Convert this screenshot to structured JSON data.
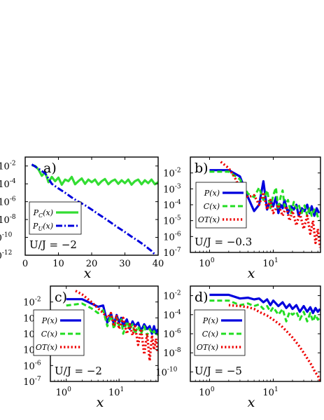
{
  "colors": {
    "P": "#0000dd",
    "C": "#22dd22",
    "OT": "#ee0000",
    "PC": "#33dd33",
    "PU": "#0000dd"
  },
  "chart_data": [
    {
      "id": "a",
      "type": "line",
      "panel_label": "a)",
      "annotation": "U/J = −2",
      "xlabel": "x",
      "xscale": "linear",
      "yscale": "log",
      "xlim": [
        0,
        40
      ],
      "ylim": [
        1e-12,
        0.1
      ],
      "xticks": [
        0,
        10,
        20,
        30,
        40
      ],
      "xtick_labels": [
        "0",
        "10",
        "20",
        "30",
        "40"
      ],
      "yticks": [
        0.01,
        0.0001,
        1e-06,
        1e-08,
        1e-10,
        1e-12
      ],
      "ytick_labels": [
        [
          "10",
          "-2"
        ],
        [
          "10",
          "-4"
        ],
        [
          "10",
          "-6"
        ],
        [
          "10",
          "-8"
        ],
        [
          "10",
          "-10"
        ],
        [
          "10",
          "-12"
        ]
      ],
      "legend_loc": "lower-left",
      "series": [
        {
          "name": "P_C(x)",
          "label": "P",
          "sub": "C",
          "suffix": "(x)",
          "style": "solid",
          "colorKey": "PC",
          "x": [
            2,
            3,
            4,
            5,
            6,
            7,
            8,
            9,
            10,
            11,
            12,
            13,
            14,
            15,
            16,
            17,
            18,
            19,
            20,
            21,
            22,
            23,
            24,
            25,
            26,
            27,
            28,
            29,
            30,
            31,
            32,
            33,
            34,
            35,
            36,
            37,
            38,
            39,
            40
          ],
          "y": [
            0.012,
            0.01,
            0.004,
            0.0008,
            0.002,
            0.00015,
            0.0006,
            0.0002,
            0.0005,
            8e-05,
            0.0003,
            0.0002,
            0.0006,
            9e-05,
            0.0002,
            0.0004,
            0.0001,
            0.0003,
            0.00015,
            0.0003,
            8e-05,
            0.0002,
            0.00035,
            9e-05,
            0.0002,
            0.0003,
            0.0001,
            0.00025,
            0.00012,
            0.0003,
            8e-05,
            0.0002,
            0.0003,
            9e-05,
            0.00025,
            0.00012,
            0.0003,
            9e-05,
            0.00015
          ]
        },
        {
          "name": "P_U(x)",
          "label": "P",
          "sub": "U",
          "suffix": "(x)",
          "style": "dashdot",
          "colorKey": "PU",
          "x": [
            2,
            4,
            6,
            8,
            10,
            12,
            14,
            16,
            18,
            20,
            22,
            24,
            26,
            28,
            30,
            32,
            34,
            36,
            38,
            40
          ],
          "y": [
            0.015,
            0.005,
            0.0015,
            0.0001,
            3e-05,
            1e-05,
            3e-06,
            1e-06,
            4e-07,
            1.3e-07,
            4e-08,
            1.3e-08,
            4e-09,
            1.2e-09,
            4e-10,
            1.2e-10,
            4e-11,
            1.2e-11,
            3e-12,
            5e-13
          ]
        }
      ]
    },
    {
      "id": "b",
      "type": "line",
      "panel_label": "b)",
      "annotation": "U/J = −0.3",
      "xlabel": "x",
      "xscale": "log",
      "yscale": "log",
      "xlim": [
        0.5,
        55
      ],
      "ylim": [
        1e-07,
        0.1
      ],
      "xticks": [
        1,
        10
      ],
      "xtick_labels": [
        [
          "10",
          "0"
        ],
        [
          "10",
          "1"
        ]
      ],
      "yticks": [
        0.01,
        0.001,
        0.0001,
        1e-05,
        1e-06,
        1e-07
      ],
      "ytick_labels": [
        [
          "10",
          "-2"
        ],
        [
          "10",
          "-3"
        ],
        [
          "10",
          "-4"
        ],
        [
          "10",
          "-5"
        ],
        [
          "10",
          "-6"
        ],
        [
          "10",
          "-7"
        ]
      ],
      "legend_loc": "upper-right",
      "series": [
        {
          "name": "P(x)",
          "label": "P(x)",
          "style": "solid",
          "colorKey": "P",
          "x": [
            1,
            2,
            3,
            4,
            5,
            6,
            7,
            8,
            9,
            10,
            11,
            12,
            13,
            14,
            15,
            17,
            19,
            21,
            23,
            25,
            28,
            31,
            34,
            37,
            40,
            44,
            48,
            52
          ],
          "y": [
            0.015,
            0.015,
            0.006,
            0.0003,
            4e-05,
            0.0001,
            0.003,
            5e-05,
            0.0002,
            8e-05,
            0.0003,
            3e-05,
            0.0001,
            6e-05,
            0.0002,
            3e-05,
            8e-05,
            5e-05,
            0.0001,
            2e-05,
            6e-05,
            4e-05,
            0.0001,
            3e-05,
            8e-05,
            2e-05,
            6e-05,
            3e-05
          ]
        },
        {
          "name": "C(x)",
          "label": "C(x)",
          "style": "dashed",
          "colorKey": "C",
          "x": [
            1,
            2,
            3,
            4,
            5,
            6,
            7,
            8,
            9,
            10,
            11,
            12,
            13,
            14,
            15,
            17,
            19,
            21,
            23,
            25,
            28,
            31,
            34,
            37,
            40,
            44,
            48,
            52
          ],
          "y": [
            0.012,
            0.012,
            0.004,
            0.0005,
            0.0003,
            0.0012,
            0.0002,
            0.0008,
            6e-05,
            0.0004,
            0.0012,
            5e-05,
            0.0003,
            0.0008,
            8e-05,
            0.0002,
            3e-05,
            0.00015,
            6e-05,
            0.0001,
            3e-05,
            9e-05,
            2e-05,
            6e-05,
            2e-05,
            5e-05,
            3e-05,
            1e-05
          ]
        },
        {
          "name": "OT(x)",
          "label": "OT(x)",
          "style": "dotted",
          "colorKey": "OT",
          "x": [
            1.5,
            2,
            2.5,
            3,
            4,
            5,
            6,
            7,
            8,
            9,
            10,
            12,
            14,
            16,
            18,
            20,
            23,
            26,
            30,
            34,
            38,
            42,
            46,
            50,
            54
          ],
          "y": [
            0.05,
            0.02,
            0.005,
            0.001,
            0.0003,
            0.0004,
            0.0001,
            0.0006,
            5e-05,
            0.0002,
            3e-05,
            0.0001,
            2e-05,
            8e-05,
            1e-05,
            4e-05,
            5e-06,
            3e-05,
            3e-06,
            2e-05,
            1.5e-06,
            1e-05,
            4e-07,
            3e-06,
            2e-07
          ]
        }
      ]
    },
    {
      "id": "c",
      "type": "line",
      "panel_label": "c)",
      "annotation": "U/J = −2",
      "xlabel": "x",
      "xscale": "log",
      "yscale": "log",
      "xlim": [
        0.5,
        55
      ],
      "ylim": [
        1e-07,
        0.1
      ],
      "xticks": [
        1,
        10
      ],
      "xtick_labels": [
        [
          "10",
          "0"
        ],
        [
          "10",
          "1"
        ]
      ],
      "yticks": [
        0.01,
        0.001,
        0.0001,
        1e-05,
        1e-06,
        1e-07
      ],
      "ytick_labels": [
        [
          "10",
          "-2"
        ],
        [
          "10",
          "-3"
        ],
        [
          "10",
          "-4"
        ],
        [
          "10",
          "-5"
        ],
        [
          "10",
          "-6"
        ],
        [
          "10",
          "-7"
        ]
      ],
      "legend_loc": "center-left",
      "series": [
        {
          "name": "P(x)",
          "label": "P(x)",
          "style": "solid",
          "colorKey": "P",
          "x": [
            1,
            2,
            3,
            4,
            5,
            6,
            7,
            8,
            9,
            10,
            11,
            12,
            14,
            16,
            18,
            20,
            23,
            26,
            30,
            34,
            38,
            42,
            46,
            50,
            54
          ],
          "y": [
            0.015,
            0.015,
            0.008,
            0.005,
            0.006,
            0.0005,
            0.002,
            0.0004,
            0.0015,
            0.0005,
            0.001,
            0.0003,
            0.0008,
            0.0002,
            0.0006,
            0.0003,
            0.0005,
            0.00015,
            0.0004,
            0.0002,
            0.0003,
            0.0001,
            0.0003,
            0.0001,
            0.0002
          ]
        },
        {
          "name": "C(x)",
          "label": "C(x)",
          "style": "dashed",
          "colorKey": "C",
          "x": [
            1,
            2,
            3,
            4,
            5,
            6,
            7,
            8,
            9,
            10,
            11,
            12,
            14,
            16,
            18,
            20,
            23,
            26,
            30,
            34,
            38,
            42,
            46,
            50,
            54
          ],
          "y": [
            0.006,
            0.008,
            0.004,
            0.002,
            0.003,
            0.0003,
            0.0015,
            0.0002,
            0.001,
            0.0003,
            0.0008,
            0.0001,
            0.0006,
            0.0002,
            0.0004,
            0.0001,
            0.0003,
            0.0001,
            0.0003,
            8e-05,
            0.0002,
            0.0001,
            0.00015,
            8e-05,
            0.0001
          ]
        },
        {
          "name": "OT(x)",
          "label": "OT(x)",
          "style": "dotted",
          "colorKey": "OT",
          "x": [
            1.5,
            2,
            3,
            4,
            5,
            6,
            7,
            8,
            9,
            10,
            12,
            14,
            16,
            18,
            20,
            23,
            26,
            30,
            34,
            38,
            42,
            46,
            50,
            54
          ],
          "y": [
            0.05,
            0.03,
            0.01,
            0.004,
            0.002,
            0.001,
            0.002,
            0.0003,
            0.0015,
            0.0002,
            0.001,
            0.0001,
            0.0004,
            8e-05,
            0.0003,
            2e-05,
            0.0002,
            5e-06,
            0.0001,
            2e-06,
            8e-05,
            1e-05,
            5e-05,
            6e-06
          ]
        }
      ]
    },
    {
      "id": "d",
      "type": "line",
      "panel_label": "d)",
      "annotation": "U/J = −5",
      "xlabel": "x",
      "xscale": "log",
      "yscale": "log",
      "xlim": [
        0.5,
        55
      ],
      "ylim": [
        1e-11,
        0.1
      ],
      "xticks": [
        1,
        10
      ],
      "xtick_labels": [
        [
          "10",
          "0"
        ],
        [
          "10",
          "1"
        ]
      ],
      "yticks": [
        0.01,
        0.0001,
        1e-06,
        1e-08,
        1e-10
      ],
      "ytick_labels": [
        [
          "10",
          "-2"
        ],
        [
          "10",
          "-4"
        ],
        [
          "10",
          "-6"
        ],
        [
          "10",
          "-8"
        ],
        [
          "10",
          "-10"
        ]
      ],
      "legend_loc": "center-left",
      "series": [
        {
          "name": "P(x)",
          "label": "P(x)",
          "style": "solid",
          "colorKey": "P",
          "x": [
            1,
            2,
            3,
            4,
            5,
            6,
            7,
            8,
            9,
            10,
            12,
            14,
            16,
            18,
            20,
            23,
            26,
            30,
            34,
            38,
            42,
            46,
            50,
            54
          ],
          "y": [
            0.012,
            0.012,
            0.005,
            0.006,
            0.004,
            0.005,
            0.002,
            0.004,
            0.001,
            0.003,
            0.0008,
            0.002,
            0.0005,
            0.0012,
            0.0004,
            0.001,
            0.0002,
            0.0008,
            0.0002,
            0.0006,
            0.00015,
            0.0005,
            0.0002,
            0.0004
          ]
        },
        {
          "name": "C(x)",
          "label": "C(x)",
          "style": "dashed",
          "colorKey": "C",
          "x": [
            1,
            2,
            3,
            4,
            5,
            6,
            7,
            8,
            9,
            10,
            12,
            14,
            16,
            18,
            20,
            23,
            26,
            30,
            34,
            38,
            42,
            46,
            50,
            54
          ],
          "y": [
            0.003,
            0.003,
            0.001,
            0.0015,
            0.0008,
            0.0012,
            0.0004,
            0.0008,
            0.0002,
            0.0006,
            0.0001,
            0.0004,
            2e-05,
            0.0002,
            0.0001,
            0.0002,
            3e-05,
            0.0002,
            2e-05,
            0.00015,
            2e-05,
            0.0001,
            3e-05,
            5e-05
          ]
        },
        {
          "name": "OT(x)",
          "label": "OT(x)",
          "style": "dotted",
          "colorKey": "OT",
          "x": [
            2,
            3,
            4,
            5,
            6,
            8,
            10,
            13,
            16,
            20,
            25,
            30,
            35,
            40,
            45,
            50,
            55
          ],
          "y": [
            0.001,
            0.0008,
            0.0006,
            0.0004,
            0.0002,
            8e-05,
            3e-05,
            8e-06,
            2e-06,
            4e-07,
            6e-08,
            1e-08,
            2e-09,
            5e-10,
            1e-10,
            4e-11,
            1e-11
          ]
        }
      ]
    }
  ]
}
